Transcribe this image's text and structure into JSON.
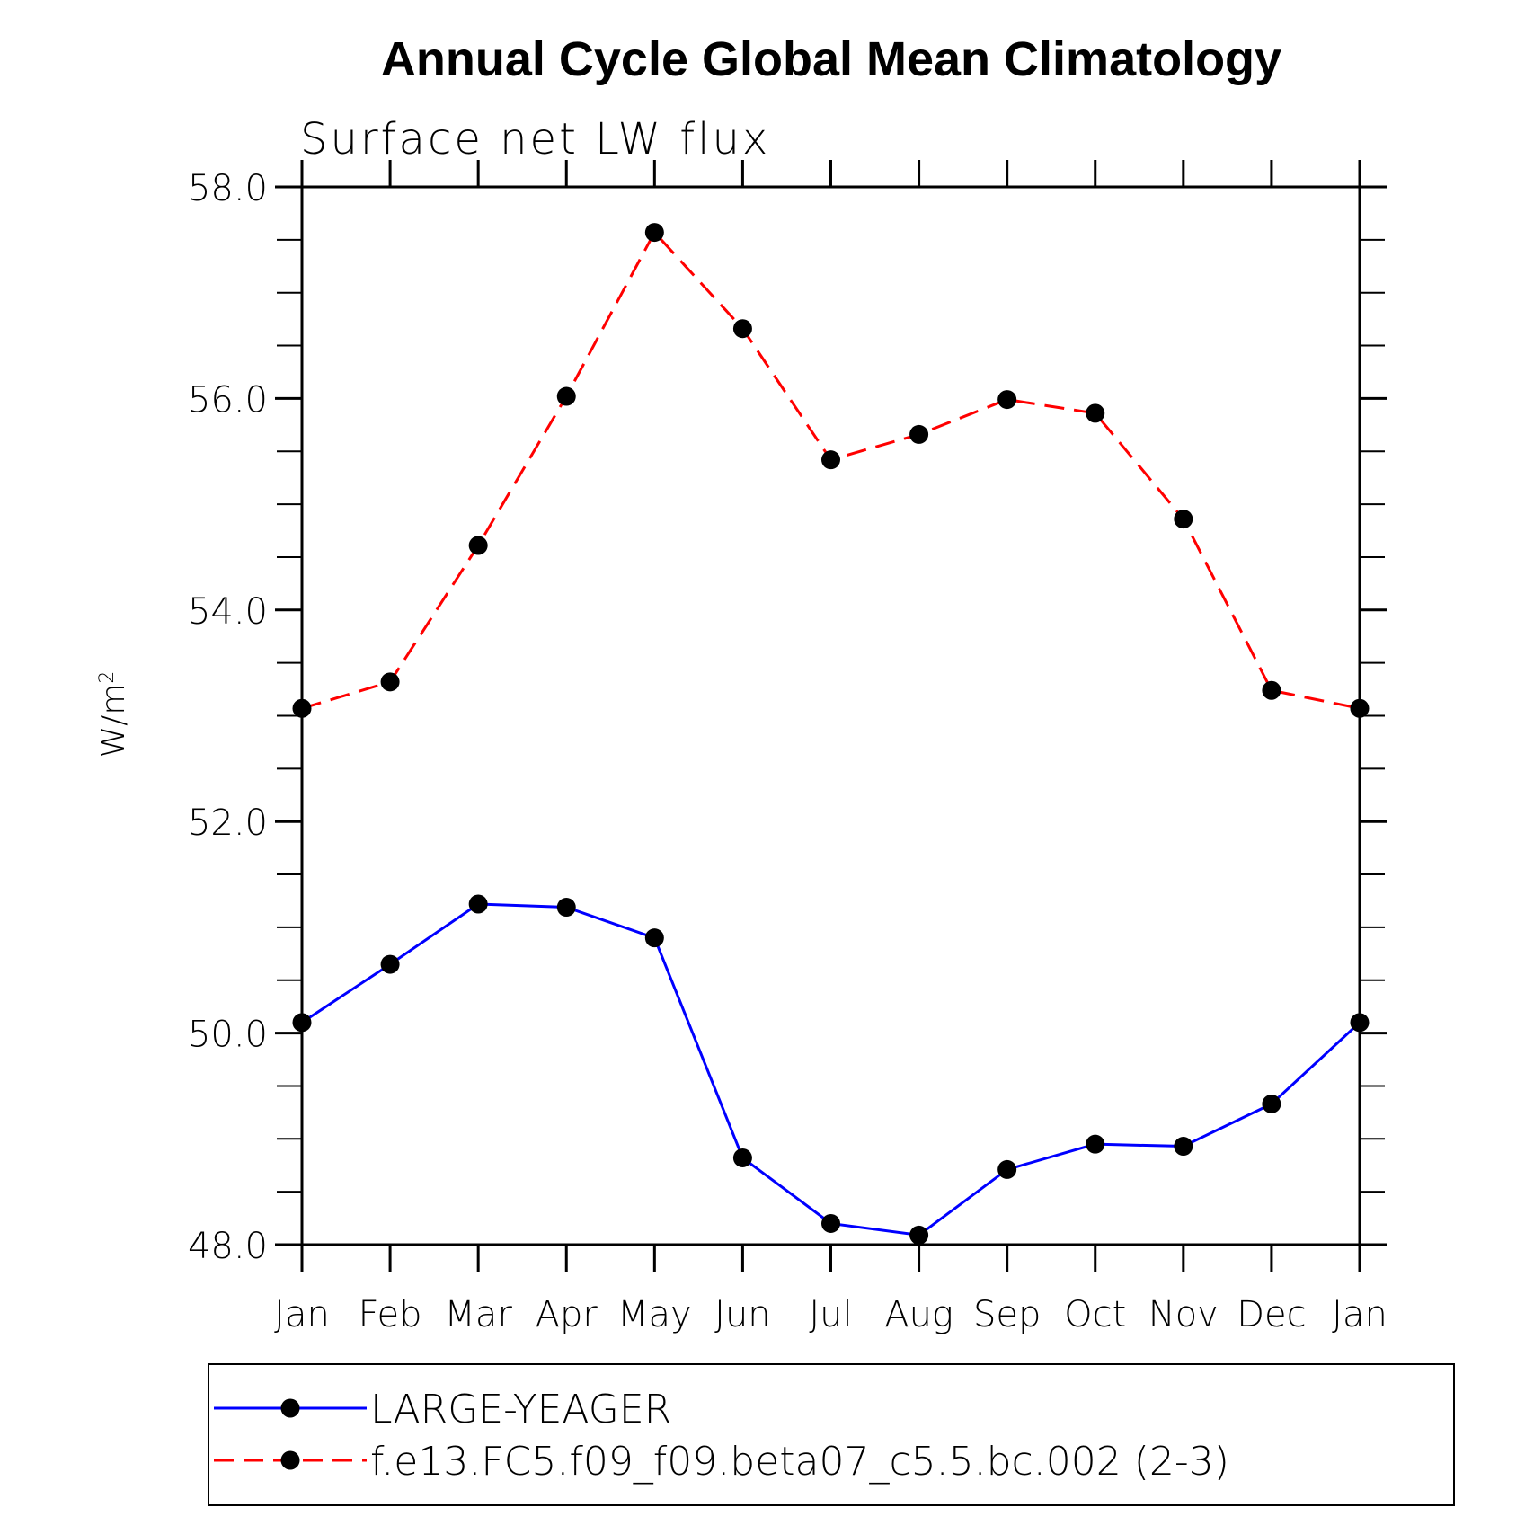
{
  "chart_data": {
    "type": "line",
    "title": "Annual Cycle Global Mean Climatology",
    "subtitle": "Surface net LW flux",
    "ylabel": "W/m",
    "ylabel_superscript": "2",
    "xlabel": "",
    "categories": [
      "Jan",
      "Feb",
      "Mar",
      "Apr",
      "May",
      "Jun",
      "Jul",
      "Aug",
      "Sep",
      "Oct",
      "Nov",
      "Dec",
      "Jan"
    ],
    "ylim": [
      48.0,
      58.0
    ],
    "yticks": [
      "48.0",
      "50.0",
      "52.0",
      "54.0",
      "56.0",
      "58.0"
    ],
    "ytick_values": [
      48,
      50,
      52,
      54,
      56,
      58
    ],
    "yminor_step": 0.5,
    "grid": false,
    "legend_position": "bottom",
    "series": [
      {
        "name": "LARGE-YEAGER",
        "color": "#0000ff",
        "style": "solid",
        "values": [
          50.1,
          50.65,
          51.22,
          51.19,
          50.9,
          48.82,
          48.2,
          48.09,
          48.71,
          48.95,
          48.93,
          49.33,
          50.1
        ]
      },
      {
        "name": "f.e13.FC5.f09_f09.beta07_c5.5.bc.002 (2-3)",
        "color": "#ff0000",
        "style": "dashed",
        "values": [
          53.07,
          53.32,
          54.61,
          56.02,
          57.57,
          56.66,
          55.42,
          55.66,
          55.99,
          55.86,
          54.86,
          53.24,
          53.07
        ]
      }
    ]
  }
}
